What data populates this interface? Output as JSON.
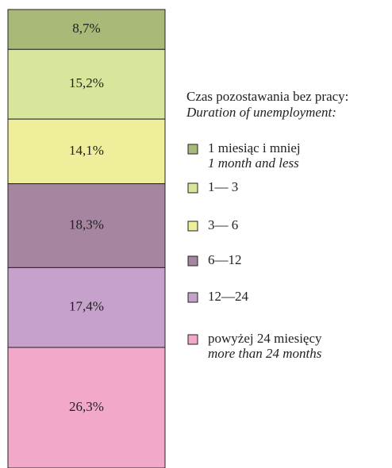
{
  "chart_data": {
    "type": "stacked_bar",
    "legend_title": "Czas pozostawania bez pracy:",
    "legend_subtitle": "Duration of unemployment:",
    "ylim": [
      0,
      100
    ],
    "series": [
      {
        "name": "1 miesiąc i mniej",
        "subtitle": "1 month and less",
        "color": "#a9b977",
        "values": [
          8.7
        ],
        "value_labels": [
          "8,7%"
        ]
      },
      {
        "name": "1— 3",
        "color": "#d7e69b",
        "values": [
          15.2
        ],
        "value_labels": [
          "15,2%"
        ]
      },
      {
        "name": "3— 6",
        "color": "#eeee9b",
        "values": [
          14.1
        ],
        "value_labels": [
          "14,1%"
        ]
      },
      {
        "name": "6—12",
        "color": "#a5859f",
        "values": [
          18.3
        ],
        "value_labels": [
          "18,3%"
        ]
      },
      {
        "name": "12—24",
        "color": "#c6a1cc",
        "values": [
          17.4
        ],
        "value_labels": [
          "17,4%"
        ]
      },
      {
        "name": "powyżej 24 miesięcy",
        "subtitle": "more than 24 months",
        "color": "#f2a9c9",
        "values": [
          26.3
        ],
        "value_labels": [
          "26,3%"
        ]
      }
    ]
  }
}
